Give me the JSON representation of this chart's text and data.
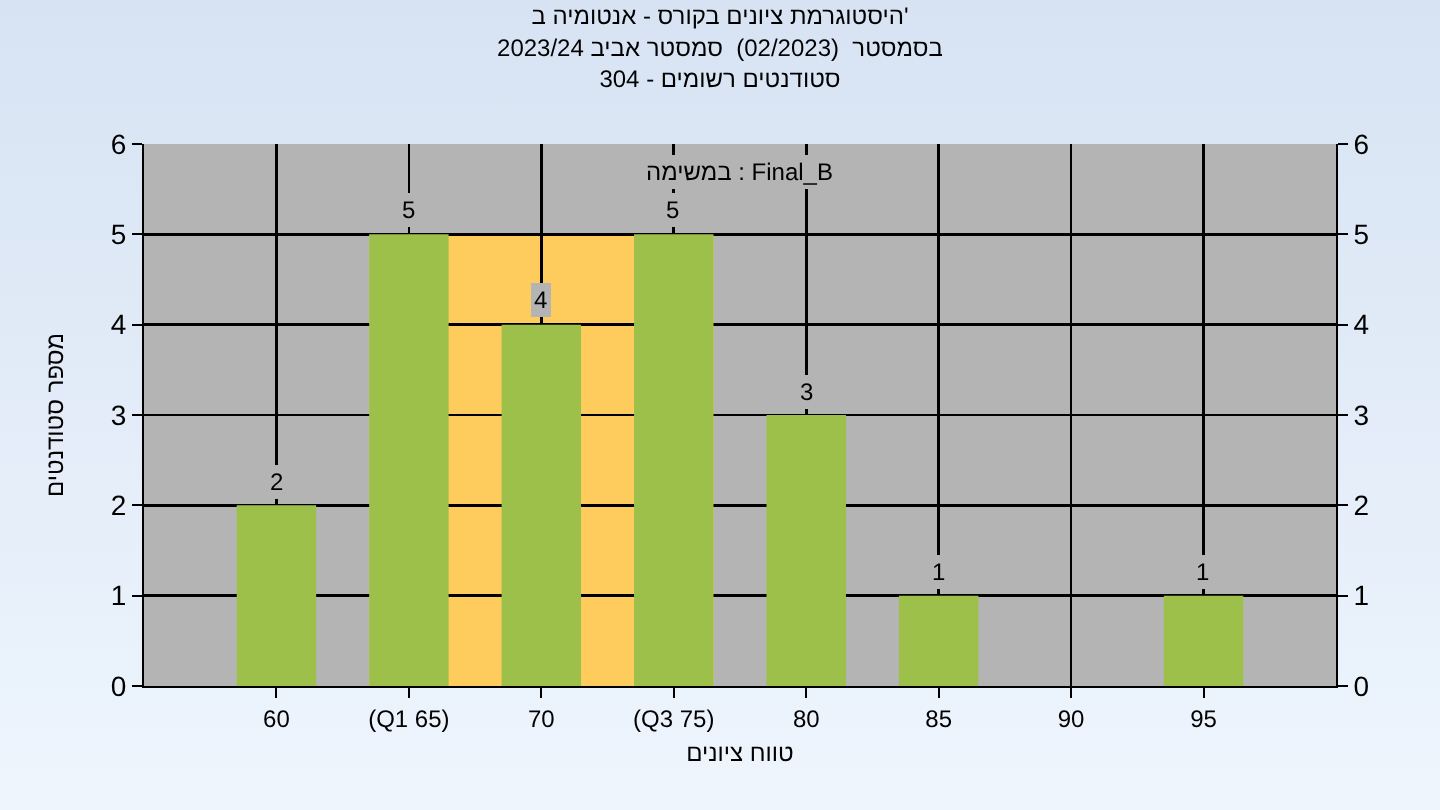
{
  "chart_data": {
    "type": "bar",
    "title": "היסטוגרמת ציונים בקורס - אנטומיה ב'\nבסמסטר  (02/2023)  סמסטר אביב 2023/24\nסטודנטים רשומים - 304",
    "xlabel": "טווח ציונים",
    "ylabel": "מספר סטודנטים",
    "annotations": [
      "במשימה : Final_B"
    ],
    "categories": [
      "60",
      "(Q1 65)",
      "70",
      "(Q3 75)",
      "80",
      "85",
      "90",
      "95"
    ],
    "values": [
      2,
      5,
      4,
      5,
      3,
      1,
      0,
      1
    ],
    "value_labels": [
      "2",
      "5",
      "4",
      "5",
      "3",
      "1",
      null,
      "1"
    ],
    "color": "#9dc04a",
    "ylim": [
      0,
      6
    ],
    "yticks": [
      0,
      1,
      2,
      3,
      4,
      5,
      6
    ],
    "y2lim": [
      0,
      6
    ],
    "y2ticks": [
      0,
      1,
      2,
      3,
      4,
      5,
      6
    ],
    "bands": [
      {
        "axis": "x",
        "from": "(Q1 65)",
        "to": "(Q3 75)",
        "color": "#fecc5c"
      }
    ],
    "grid": true
  }
}
